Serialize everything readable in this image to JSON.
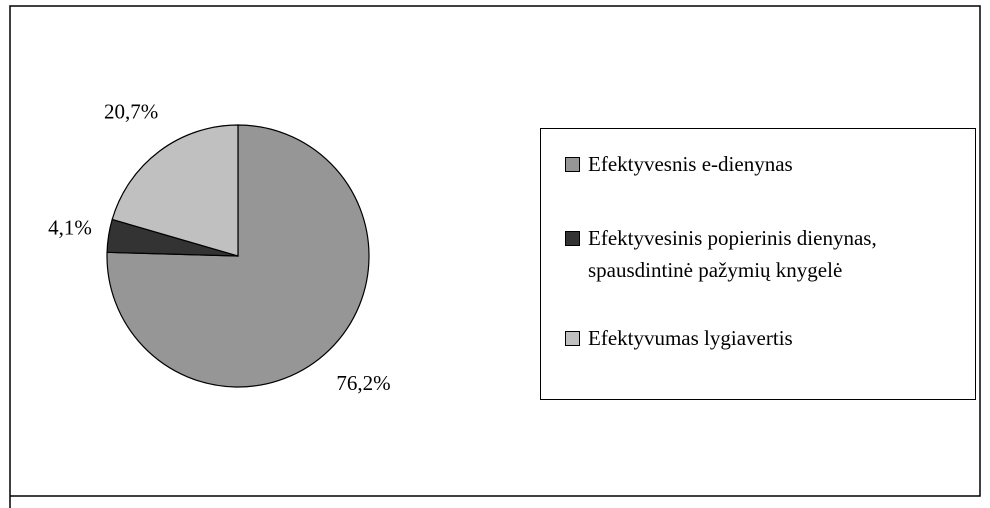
{
  "chart_data": {
    "type": "pie",
    "categories": [
      "Efektyvesnis e-dienynas",
      "Efektyvesinis popierinis dienynas, spausdintinė pažymių knygelė",
      "Efektyvumas lygiavertis"
    ],
    "values": [
      76.2,
      4.1,
      20.7
    ],
    "value_labels": [
      "76,2%",
      "4,1%",
      "20,7%"
    ],
    "colors": [
      "#969696",
      "#333333",
      "#c0c0c0"
    ],
    "legend": "right"
  }
}
